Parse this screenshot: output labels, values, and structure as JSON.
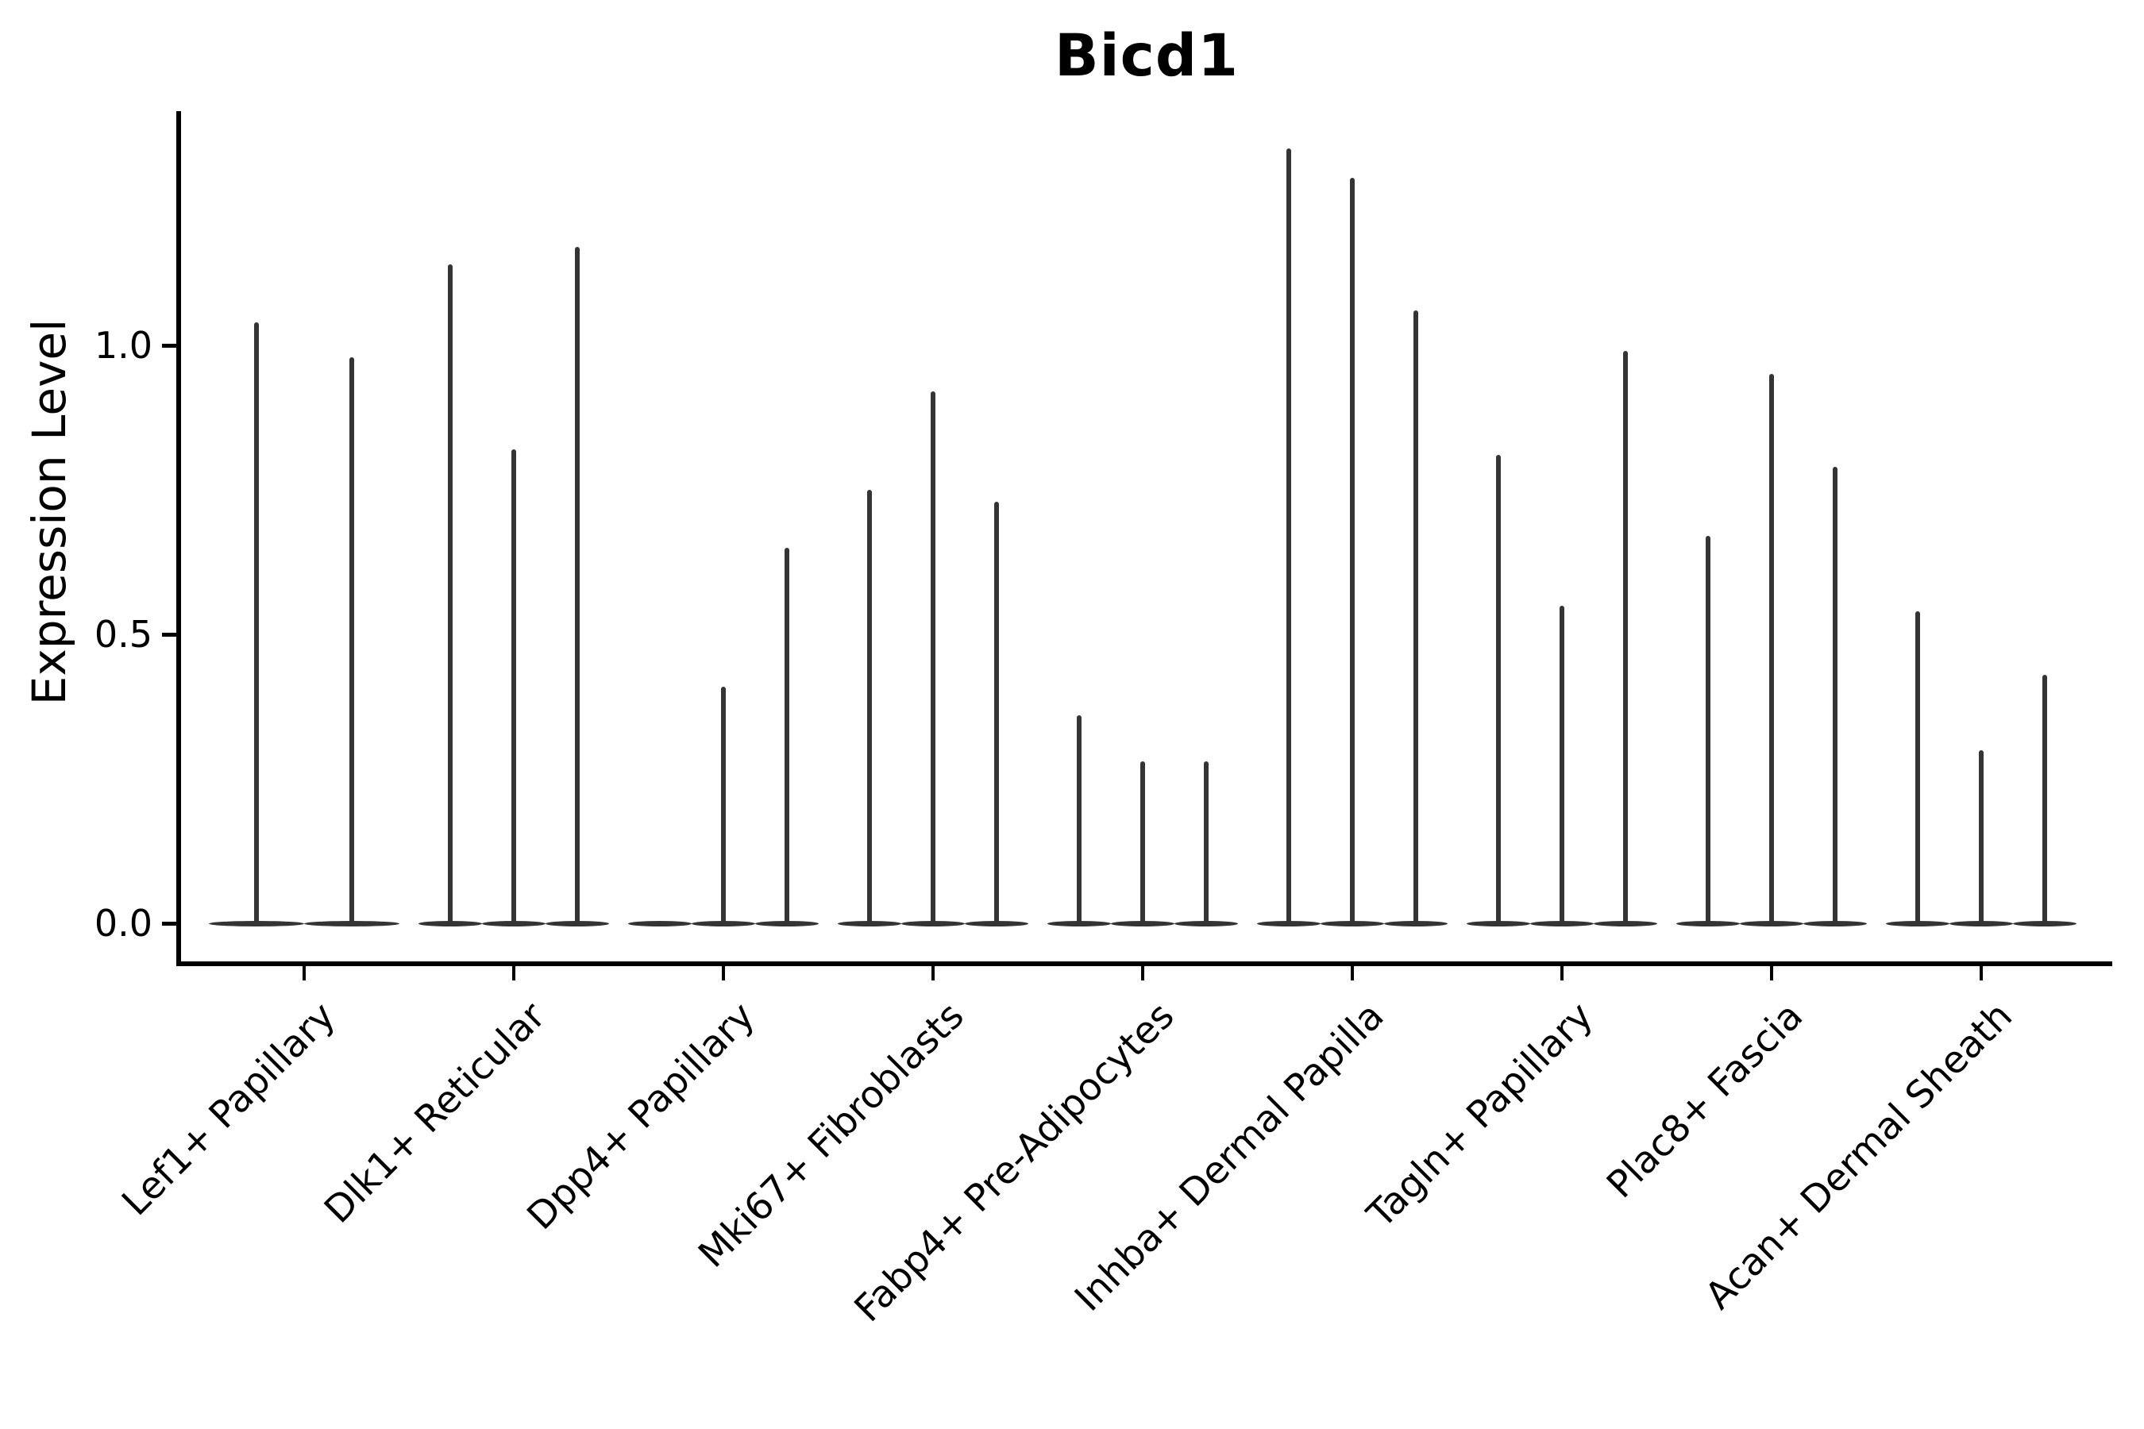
{
  "chart_data": {
    "type": "violin",
    "title": "Bicd1",
    "ylabel": "Expression Level",
    "xlabel": "",
    "grid": false,
    "legend": "none",
    "ylim": [
      -0.07,
      1.41
    ],
    "ytick_values": [
      0.0,
      0.5,
      1.0
    ],
    "ytick_labels": [
      "0.0",
      "0.5",
      "1.0"
    ],
    "categories": [
      "Lef1+ Papillary",
      "Dlk1+ Reticular",
      "Dpp4+ Papillary",
      "Mki67+ Fibroblasts",
      "Fabp4+ Pre-Adipocytes",
      "Inhba+ Dermal Papilla",
      "Tagln+ Papillary",
      "Plac8+ Fascia",
      "Acan+ Dermal Sheath"
    ],
    "groups": [
      {
        "label": "Lef1+ Papillary",
        "violin_max_values": [
          1.04,
          0.98
        ]
      },
      {
        "label": "Dlk1+ Reticular",
        "violin_max_values": [
          1.14,
          0.82,
          1.17
        ]
      },
      {
        "label": "Dpp4+ Papillary",
        "violin_max_values": [
          0.0,
          0.41,
          0.65
        ]
      },
      {
        "label": "Mki67+ Fibroblasts",
        "violin_max_values": [
          0.75,
          0.92,
          0.73
        ]
      },
      {
        "label": "Fabp4+ Pre-Adipocytes",
        "violin_max_values": [
          0.36,
          0.28,
          0.28
        ]
      },
      {
        "label": "Inhba+ Dermal Papilla",
        "violin_max_values": [
          1.34,
          1.29,
          1.06
        ]
      },
      {
        "label": "Tagln+ Papillary",
        "violin_max_values": [
          0.81,
          0.55,
          0.99
        ]
      },
      {
        "label": "Plac8+ Fascia",
        "violin_max_values": [
          0.67,
          0.95,
          0.79
        ]
      },
      {
        "label": "Acan+ Dermal Sheath",
        "violin_max_values": [
          0.54,
          0.3,
          0.43
        ]
      }
    ],
    "colors": {
      "violin": "#343434",
      "axis": "#000000",
      "text": "#000000",
      "background": "#ffffff"
    }
  }
}
